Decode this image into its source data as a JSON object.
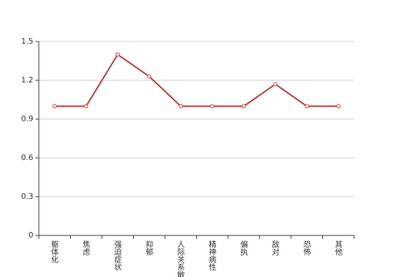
{
  "chart_data": {
    "type": "line",
    "categories": [
      "躯体化",
      "焦虑",
      "强迫症状",
      "抑郁",
      "人际关系敏感",
      "精神病性",
      "偏执",
      "敌对",
      "恐怖",
      "其他"
    ],
    "values": [
      1.0,
      1.0,
      1.4,
      1.23,
      1.0,
      1.0,
      1.0,
      1.17,
      1.0,
      1.0
    ],
    "color": "#c23531",
    "ylim": [
      0,
      1.5
    ],
    "yticks": [
      0,
      0.3,
      0.6,
      0.9,
      1.2,
      1.5
    ],
    "grid": true
  }
}
